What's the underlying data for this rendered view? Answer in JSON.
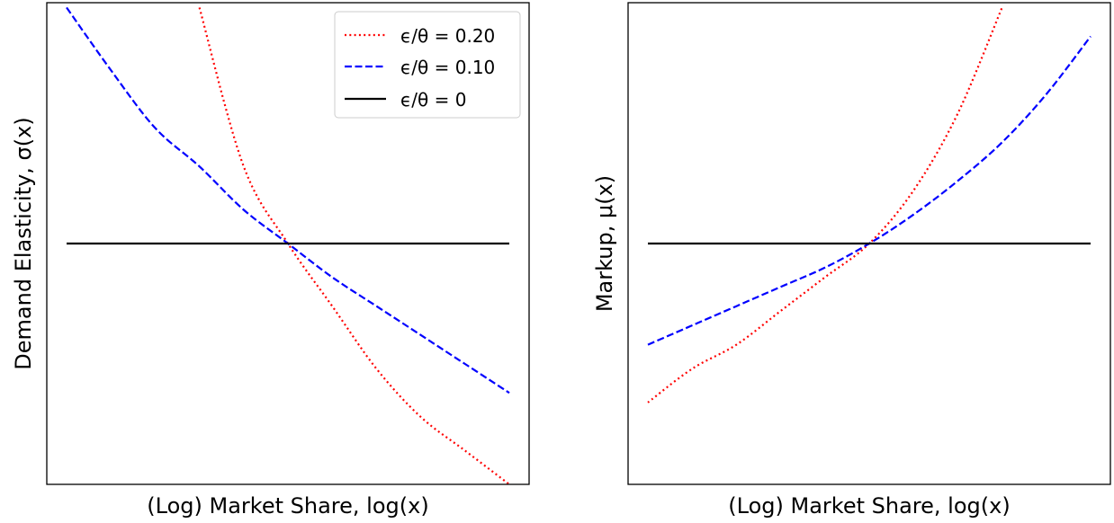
{
  "chart_data": [
    {
      "type": "line",
      "xlabel": "(Log) Market Share, log(x)",
      "ylabel": "Demand Elasticity, σ(x)",
      "xticks": [],
      "yticks": [],
      "xlim": [
        0,
        1
      ],
      "ylim": [
        -0.5,
        0.5
      ],
      "legend_position": "top-right",
      "series": [
        {
          "name": "ϵ/θ = 0.20",
          "color": "#ff0000",
          "style": "dotted",
          "x": [
            0.0,
            0.1,
            0.2,
            0.3,
            0.4,
            0.5,
            0.6,
            0.7,
            0.8,
            0.9,
            1.0
          ],
          "y": [
            null,
            null,
            null,
            0.49,
            0.16,
            0.0,
            -0.13,
            -0.26,
            -0.36,
            -0.43,
            -0.5
          ]
        },
        {
          "name": "ϵ/θ = 0.10",
          "color": "#0000ff",
          "style": "dashed",
          "x": [
            0.0,
            0.1,
            0.2,
            0.3,
            0.4,
            0.5,
            0.6,
            0.7,
            0.8,
            0.9,
            1.0
          ],
          "y": [
            0.49,
            0.36,
            0.24,
            0.16,
            0.07,
            0.0,
            -0.07,
            -0.13,
            -0.19,
            -0.25,
            -0.31
          ]
        },
        {
          "name": "ϵ/θ = 0",
          "color": "#000000",
          "style": "solid",
          "x": [
            0.0,
            1.0
          ],
          "y": [
            0.0,
            0.0
          ]
        }
      ]
    },
    {
      "type": "line",
      "xlabel": "(Log) Market Share, log(x)",
      "ylabel": "Markup, μ(x)",
      "xticks": [],
      "yticks": [],
      "xlim": [
        0,
        1
      ],
      "ylim": [
        -0.5,
        0.5
      ],
      "series": [
        {
          "name": "ϵ/θ = 0.20",
          "color": "#ff0000",
          "style": "dotted",
          "x": [
            0.0,
            0.1,
            0.2,
            0.3,
            0.4,
            0.5,
            0.6,
            0.7,
            0.8,
            0.9,
            1.0
          ],
          "y": [
            -0.33,
            -0.26,
            -0.21,
            -0.14,
            -0.07,
            0.0,
            0.11,
            0.27,
            0.49,
            null,
            null
          ]
        },
        {
          "name": "ϵ/θ = 0.10",
          "color": "#0000ff",
          "style": "dashed",
          "x": [
            0.0,
            0.1,
            0.2,
            0.3,
            0.4,
            0.5,
            0.6,
            0.7,
            0.8,
            0.9,
            1.0
          ],
          "y": [
            -0.21,
            -0.17,
            -0.13,
            -0.09,
            -0.05,
            0.0,
            0.06,
            0.13,
            0.21,
            0.31,
            0.43
          ]
        },
        {
          "name": "ϵ/θ = 0",
          "color": "#000000",
          "style": "solid",
          "x": [
            0.0,
            1.0
          ],
          "y": [
            0.0,
            0.0
          ]
        }
      ]
    }
  ]
}
